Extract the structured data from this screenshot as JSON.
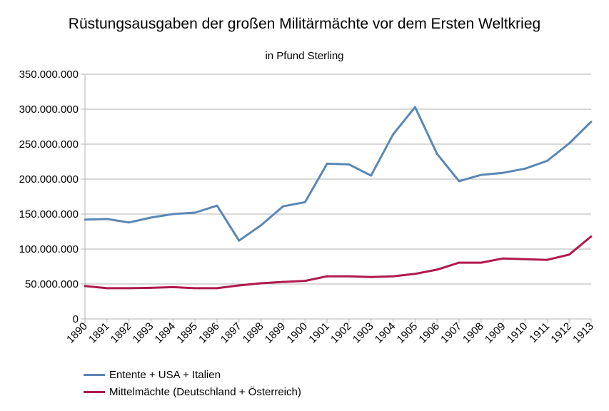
{
  "chart_data": {
    "type": "line",
    "title": "Rüstungsausgaben der großen Militärmächte vor dem Ersten Weltkrieg",
    "subtitle": "in Pfund Sterling",
    "xlabel": "",
    "ylabel": "",
    "categories": [
      "1890",
      "1891",
      "1892",
      "1893",
      "1894",
      "1895",
      "1896",
      "1897",
      "1898",
      "1899",
      "1900",
      "1901",
      "1902",
      "1903",
      "1904",
      "1905",
      "1906",
      "1907",
      "1908",
      "1909",
      "1910",
      "1911",
      "1912",
      "1913"
    ],
    "ylim": [
      0,
      350000000
    ],
    "yticks": [
      0,
      50000000,
      100000000,
      150000000,
      200000000,
      250000000,
      300000000,
      350000000
    ],
    "ytick_labels": [
      "0",
      "50.000.000",
      "100.000.000",
      "150.000.000",
      "200.000.000",
      "250.000.000",
      "300.000.000",
      "350.000.000"
    ],
    "grid": true,
    "legend_position": "bottom-left",
    "series": [
      {
        "name": "Entente + USA + Italien",
        "color": "#5b87b4",
        "values": [
          142000000,
          143000000,
          138000000,
          145000000,
          150000000,
          152000000,
          162000000,
          112000000,
          134000000,
          161000000,
          167000000,
          222000000,
          221000000,
          205000000,
          264000000,
          303000000,
          236000000,
          197000000,
          206000000,
          209000000,
          215000000,
          226000000,
          251000000,
          282000000
        ]
      },
      {
        "name": "Mittelmächte (Deutschland + Österreich)",
        "color": "#b0184e",
        "values": [
          47000000,
          44000000,
          44000000,
          44500000,
          45500000,
          44000000,
          44000000,
          48000000,
          51000000,
          53000000,
          54500000,
          61000000,
          61000000,
          60000000,
          61000000,
          64500000,
          70500000,
          80500000,
          80500000,
          86500000,
          85500000,
          84500000,
          92000000,
          118000000
        ]
      }
    ]
  }
}
